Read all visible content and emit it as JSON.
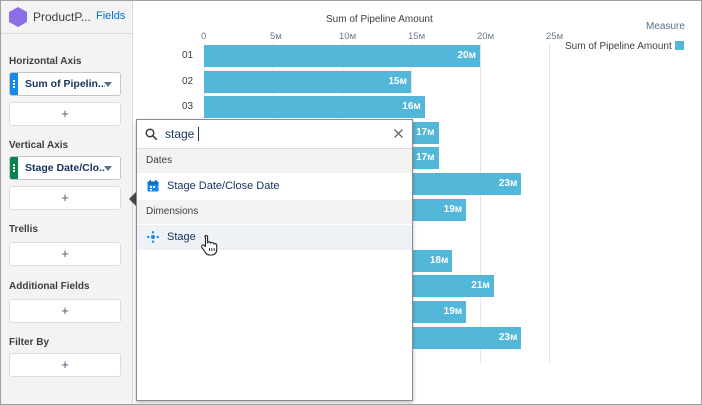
{
  "panel": {
    "dataset_name": "ProductP...",
    "fields_link": "Fields",
    "horizontal_axis_label": "Horizontal Axis",
    "horizontal_axis_value": "Sum of Pipelin...",
    "vertical_axis_label": "Vertical Axis",
    "vertical_axis_value": "Stage Date/Clo...",
    "trellis_label": "Trellis",
    "additional_fields_label": "Additional Fields",
    "filter_by_label": "Filter By",
    "add_symbol": "+",
    "colors": {
      "measure": "#1589ee",
      "dimension": "#04844b",
      "dataset_icon": "#8c6ee6"
    }
  },
  "chart_data": {
    "type": "bar",
    "orientation": "horizontal",
    "title": "Sum of Pipeline Amount",
    "x_ticks": [
      "0",
      "5м",
      "10м",
      "15м",
      "20м",
      "25м"
    ],
    "xlim": [
      0,
      25
    ],
    "categories": [
      "01",
      "02",
      "03",
      "",
      "",
      "",
      "",
      "",
      "",
      "",
      "",
      ""
    ],
    "series": [
      {
        "name": "Sum of Pipeline Amount",
        "values": [
          20,
          15,
          16,
          17,
          17,
          23,
          19,
          null,
          18,
          21,
          19,
          23
        ],
        "labels": [
          "20м",
          "15м",
          "16м",
          "17м",
          "17м",
          "23м",
          "19м",
          "",
          "18м",
          "21м",
          "19м",
          "23м"
        ]
      }
    ],
    "legend_title": "Measure",
    "legend_position": "top-right",
    "bar_color": "#52b7d8",
    "grid": true
  },
  "popover": {
    "search_value": "stage",
    "groups": [
      {
        "title": "Dates",
        "items": [
          {
            "label": "Stage Date/Close Date",
            "icon": "calendar-icon"
          }
        ]
      },
      {
        "title": "Dimensions",
        "items": [
          {
            "label": "Stage",
            "icon": "dimension-icon"
          }
        ]
      }
    ]
  }
}
